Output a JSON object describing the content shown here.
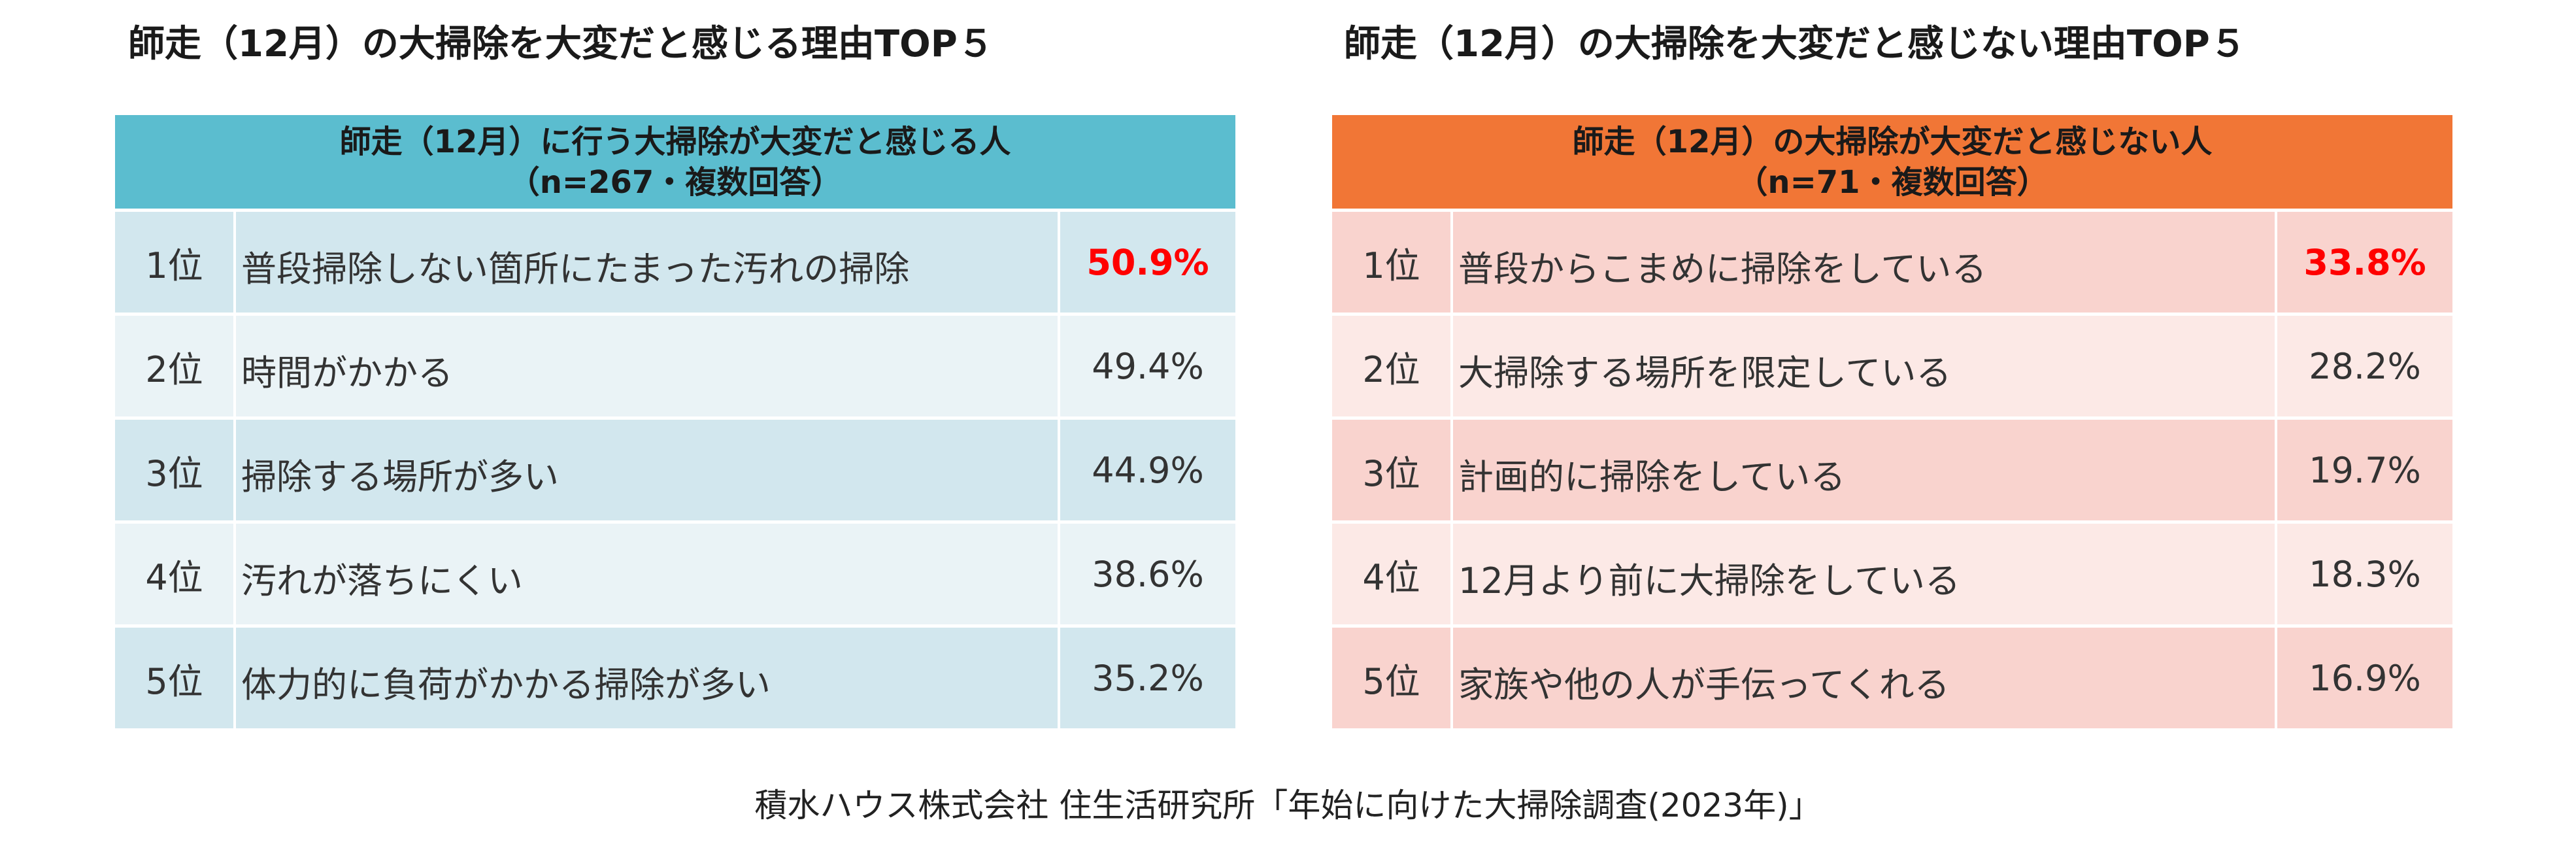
{
  "chart_data": [
    {
      "type": "table",
      "title": "師走（12月）の大掃除を大変だと感じる理由TOP５",
      "header": [
        "師走（12月）に行う大掃除が大変だと感じる人",
        "（n=267・複数回答）"
      ],
      "rows": [
        {
          "rank": "1位",
          "label": "普段掃除しない箇所にたまった汚れの掃除",
          "value": "50.9%"
        },
        {
          "rank": "2位",
          "label": "時間がかかる",
          "value": "49.4%"
        },
        {
          "rank": "3位",
          "label": "掃除する場所が多い",
          "value": "44.9%"
        },
        {
          "rank": "4位",
          "label": "汚れが落ちにくい",
          "value": "38.6%"
        },
        {
          "rank": "5位",
          "label": "体力的に負荷がかかる掃除が多い",
          "value": "35.2%"
        }
      ],
      "colors": {
        "header": "#5BBDCF",
        "row_odd": "#D2E7EE",
        "row_even": "#EAF3F6",
        "highlight": "#FF0000"
      }
    },
    {
      "type": "table",
      "title": "師走（12月）の大掃除を大変だと感じない理由TOP５",
      "header": [
        "師走（12月）の大掃除が大変だと感じない人",
        "（n=71・複数回答）"
      ],
      "rows": [
        {
          "rank": "1位",
          "label": "普段からこまめに掃除をしている",
          "value": "33.8%"
        },
        {
          "rank": "2位",
          "label": "大掃除する場所を限定している",
          "value": "28.2%"
        },
        {
          "rank": "3位",
          "label": "計画的に掃除をしている",
          "value": "19.7%"
        },
        {
          "rank": "4位",
          "label": "12月より前に大掃除をしている",
          "value": "18.3%"
        },
        {
          "rank": "5位",
          "label": "家族や他の人が手伝ってくれる",
          "value": "16.9%"
        }
      ],
      "colors": {
        "header": "#F17636",
        "row_odd": "#F9D3CE",
        "row_even": "#FCE9E6",
        "highlight": "#FF0000"
      }
    }
  ],
  "footer": "積水ハウス株式会社 住生活研究所「年始に向けた大掃除調査(2023年)」"
}
